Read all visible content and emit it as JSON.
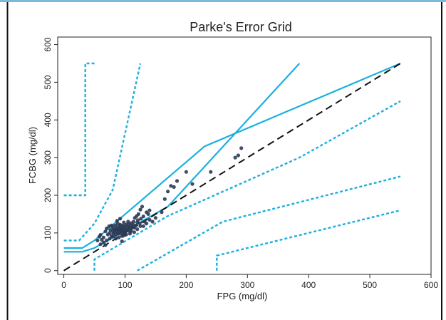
{
  "chart_data": {
    "type": "scatter",
    "title": "Parke's Error Grid",
    "xlabel": "FPG (mg/dl)",
    "ylabel": "FCBG (mg/dl)",
    "xlim": [
      -10,
      600
    ],
    "ylim": [
      -10,
      620
    ],
    "xticks": [
      "0",
      "100",
      "200",
      "300",
      "400",
      "500",
      "600"
    ],
    "yticks": [
      "0",
      "100",
      "200",
      "300",
      "400",
      "500",
      "600"
    ],
    "grid": false,
    "colors": {
      "zone_line": "#1ab0e0",
      "identity_line": "#111111",
      "points": "#2b3a55",
      "frame_border": "#7ab8dc"
    },
    "identity_line": {
      "x": [
        0,
        550
      ],
      "y": [
        0,
        550
      ]
    },
    "zone_lines": [
      {
        "style": "solid",
        "x": [
          0,
          30,
          50,
          170,
          385
        ],
        "y": [
          50,
          50,
          60,
          170,
          550
        ]
      },
      {
        "style": "solid",
        "x": [
          0,
          30,
          50,
          230,
          550
        ],
        "y": [
          60,
          60,
          80,
          330,
          550
        ]
      },
      {
        "style": "dotted",
        "x": [
          0,
          35,
          35,
          50
        ],
        "y": [
          200,
          200,
          550,
          550
        ]
      },
      {
        "style": "dotted",
        "x": [
          0,
          25,
          50,
          80,
          125
        ],
        "y": [
          80,
          80,
          125,
          215,
          550
        ]
      },
      {
        "style": "dotted",
        "x": [
          50,
          50,
          170,
          385,
          550
        ],
        "y": [
          0,
          30,
          145,
          300,
          450
        ]
      },
      {
        "style": "dotted",
        "x": [
          120,
          260,
          550
        ],
        "y": [
          0,
          130,
          250
        ]
      },
      {
        "style": "dotted",
        "x": [
          250,
          250,
          550
        ],
        "y": [
          0,
          40,
          160
        ]
      }
    ],
    "points": [
      [
        60,
        95
      ],
      [
        65,
        88
      ],
      [
        68,
        104
      ],
      [
        70,
        112
      ],
      [
        72,
        96
      ],
      [
        74,
        118
      ],
      [
        75,
        100
      ],
      [
        76,
        108
      ],
      [
        78,
        120
      ],
      [
        78,
        92
      ],
      [
        80,
        105
      ],
      [
        80,
        115
      ],
      [
        81,
        98
      ],
      [
        82,
        110
      ],
      [
        83,
        102
      ],
      [
        84,
        120
      ],
      [
        85,
        95
      ],
      [
        85,
        110
      ],
      [
        86,
        105
      ],
      [
        87,
        115
      ],
      [
        88,
        100
      ],
      [
        88,
        125
      ],
      [
        89,
        108
      ],
      [
        90,
        112
      ],
      [
        90,
        98
      ],
      [
        91,
        118
      ],
      [
        92,
        105
      ],
      [
        92,
        122
      ],
      [
        93,
        110
      ],
      [
        94,
        100
      ],
      [
        95,
        115
      ],
      [
        95,
        108
      ],
      [
        96,
        120
      ],
      [
        97,
        103
      ],
      [
        98,
        112
      ],
      [
        98,
        128
      ],
      [
        99,
        107
      ],
      [
        100,
        118
      ],
      [
        100,
        102
      ],
      [
        101,
        113
      ],
      [
        102,
        122
      ],
      [
        103,
        106
      ],
      [
        104,
        117
      ],
      [
        105,
        110
      ],
      [
        106,
        124
      ],
      [
        107,
        114
      ],
      [
        108,
        104
      ],
      [
        109,
        119
      ],
      [
        110,
        112
      ],
      [
        110,
        126
      ],
      [
        112,
        116
      ],
      [
        113,
        122
      ],
      [
        114,
        130
      ],
      [
        115,
        114
      ],
      [
        116,
        140
      ],
      [
        118,
        120
      ],
      [
        119,
        145
      ],
      [
        120,
        128
      ],
      [
        121,
        134
      ],
      [
        122,
        150
      ],
      [
        124,
        125
      ],
      [
        125,
        162
      ],
      [
        126,
        138
      ],
      [
        128,
        170
      ],
      [
        130,
        144
      ],
      [
        132,
        130
      ],
      [
        135,
        155
      ],
      [
        138,
        150
      ],
      [
        140,
        160
      ],
      [
        100,
        95
      ],
      [
        95,
        92
      ],
      [
        90,
        88
      ],
      [
        85,
        85
      ],
      [
        80,
        90
      ],
      [
        75,
        85
      ],
      [
        70,
        80
      ],
      [
        65,
        75
      ],
      [
        62,
        82
      ],
      [
        58,
        90
      ],
      [
        55,
        80
      ],
      [
        105,
        130
      ],
      [
        110,
        105
      ],
      [
        115,
        102
      ],
      [
        120,
        110
      ],
      [
        125,
        118
      ],
      [
        130,
        118
      ],
      [
        135,
        125
      ],
      [
        140,
        135
      ],
      [
        145,
        130
      ],
      [
        150,
        140
      ],
      [
        160,
        155
      ],
      [
        165,
        190
      ],
      [
        170,
        210
      ],
      [
        175,
        225
      ],
      [
        180,
        222
      ],
      [
        185,
        238
      ],
      [
        200,
        262
      ],
      [
        210,
        230
      ],
      [
        240,
        262
      ],
      [
        280,
        300
      ],
      [
        285,
        306
      ],
      [
        290,
        325
      ],
      [
        87,
        132
      ],
      [
        92,
        138
      ],
      [
        97,
        93
      ],
      [
        102,
        96
      ],
      [
        108,
        98
      ],
      [
        60,
        70
      ],
      [
        68,
        68
      ],
      [
        95,
        78
      ]
    ]
  }
}
